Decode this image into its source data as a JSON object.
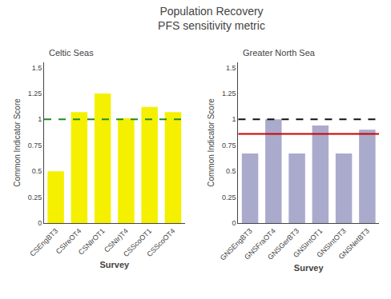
{
  "title": "Population Recovery\nPFS sensitivity metric",
  "chart_data": [
    {
      "type": "bar",
      "title": "Celtic Seas",
      "x_label": "Survey",
      "y_label": "Common Indicator Score",
      "categories": [
        "CSEngBT3",
        "CSIreOT4",
        "CSNIrOT1",
        "CSNIr)T4",
        "CSScoOT1",
        "CSScoOT4"
      ],
      "values": [
        0.5,
        1.07,
        1.25,
        1.01,
        1.12,
        1.07
      ],
      "color": "#F5F000",
      "reference_lines": [
        {
          "value": 1.0,
          "color": "#228B22",
          "line_style": "dashed"
        }
      ],
      "ylim": [
        0,
        1.55
      ],
      "yticks": [
        0,
        0.25,
        0.5,
        0.75,
        1,
        1.25,
        1.5
      ],
      "grid": false
    },
    {
      "type": "bar",
      "title": "Greater North Sea",
      "x_label": "Survey",
      "y_label": "Common Indicator Score",
      "categories": [
        "GNSEngBT3",
        "GNSFraOT4",
        "GNSGerBT3",
        "GNSIntOT1",
        "GNSIntOT3",
        "GNSNetBT3"
      ],
      "values": [
        0.67,
        1.0,
        0.67,
        0.94,
        0.67,
        0.9
      ],
      "color": "#AAAACC",
      "reference_lines": [
        {
          "value": 1.0,
          "color": "#111111",
          "line_style": "dashed"
        },
        {
          "value": 0.86,
          "color": "#CC0000",
          "line_style": "solid"
        }
      ],
      "ylim": [
        0,
        1.55
      ],
      "yticks": [
        0,
        0.25,
        0.5,
        0.75,
        1,
        1.25,
        1.5
      ],
      "grid": false
    }
  ]
}
